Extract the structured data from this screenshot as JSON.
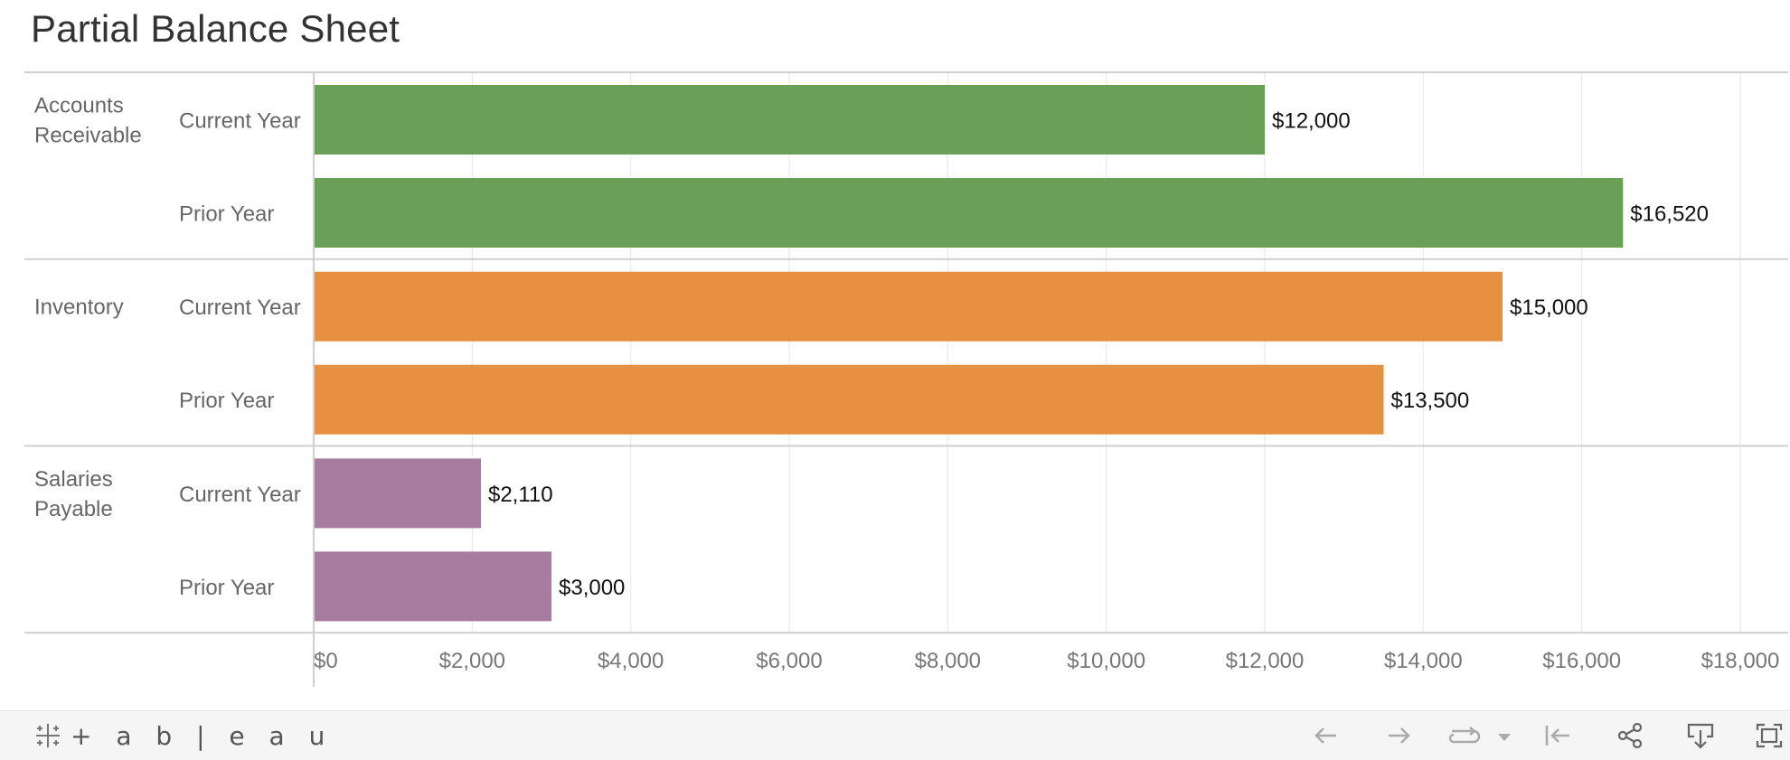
{
  "title": "Partial Balance Sheet",
  "chart_data": {
    "type": "bar",
    "orientation": "horizontal",
    "title": "Partial Balance Sheet",
    "xlim": [
      0,
      18000
    ],
    "x_ticks": [
      "$0",
      "$2,000",
      "$4,000",
      "$6,000",
      "$8,000",
      "$10,000",
      "$12,000",
      "$14,000",
      "$16,000",
      "$18,000"
    ],
    "groups": [
      {
        "name_lines": [
          "Accounts",
          "Receivable"
        ],
        "color": "#6a9f58",
        "rows": [
          {
            "label": "Current Year",
            "value": 12000,
            "value_label": "$12,000"
          },
          {
            "label": "Prior Year",
            "value": 16520,
            "value_label": "$16,520"
          }
        ]
      },
      {
        "name_lines": [
          "Inventory"
        ],
        "color": "#e69141",
        "rows": [
          {
            "label": "Current Year",
            "value": 15000,
            "value_label": "$15,000"
          },
          {
            "label": "Prior Year",
            "value": 13500,
            "value_label": "$13,500"
          }
        ]
      },
      {
        "name_lines": [
          "Salaries",
          "Payable"
        ],
        "color": "#a77c9f",
        "rows": [
          {
            "label": "Current Year",
            "value": 2110,
            "value_label": "$2,110"
          },
          {
            "label": "Prior Year",
            "value": 3000,
            "value_label": "$3,000"
          }
        ]
      }
    ]
  },
  "toolbar": {
    "logo_text": "+ a b | e a u",
    "buttons": [
      {
        "name": "undo-icon"
      },
      {
        "name": "redo-icon"
      },
      {
        "name": "revert-icon"
      },
      {
        "name": "dropdown-arrow-icon"
      },
      {
        "name": "reset-icon"
      },
      {
        "name": "share-icon"
      },
      {
        "name": "download-icon"
      },
      {
        "name": "fullscreen-icon"
      }
    ]
  }
}
